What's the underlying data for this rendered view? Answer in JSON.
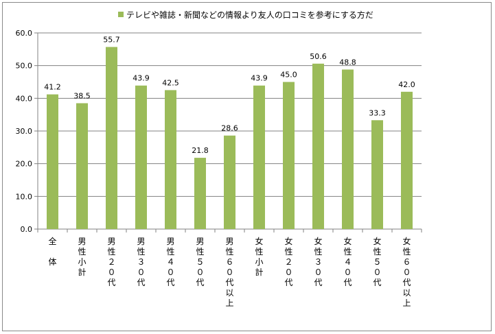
{
  "chart_data": {
    "type": "bar",
    "legend": "テレビや雑誌・新聞などの情報より友人の口コミを参考にする方だ",
    "categories": [
      "全　体",
      "男性小計",
      "男性２０代",
      "男性３０代",
      "男性４０代",
      "男性５０代",
      "男性６０代以上",
      "女性小計",
      "女性２０代",
      "女性３０代",
      "女性４０代",
      "女性５０代",
      "女性６０代以上"
    ],
    "values": [
      41.2,
      38.5,
      55.7,
      43.9,
      42.5,
      21.8,
      28.6,
      43.9,
      45.0,
      50.6,
      48.8,
      33.3,
      42.0
    ],
    "value_labels": [
      "41.2",
      "38.5",
      "55.7",
      "43.9",
      "42.5",
      "21.8",
      "28.6",
      "43.9",
      "45.0",
      "50.6",
      "48.8",
      "33.3",
      "42.0"
    ],
    "yticks": [
      "0.0",
      "10.0",
      "20.0",
      "30.0",
      "40.0",
      "50.0",
      "60.0"
    ],
    "ylim": [
      0,
      60
    ],
    "grid": true,
    "legend_position": "top",
    "bar_color": "#9bbb59",
    "grid_color": "#808080"
  }
}
